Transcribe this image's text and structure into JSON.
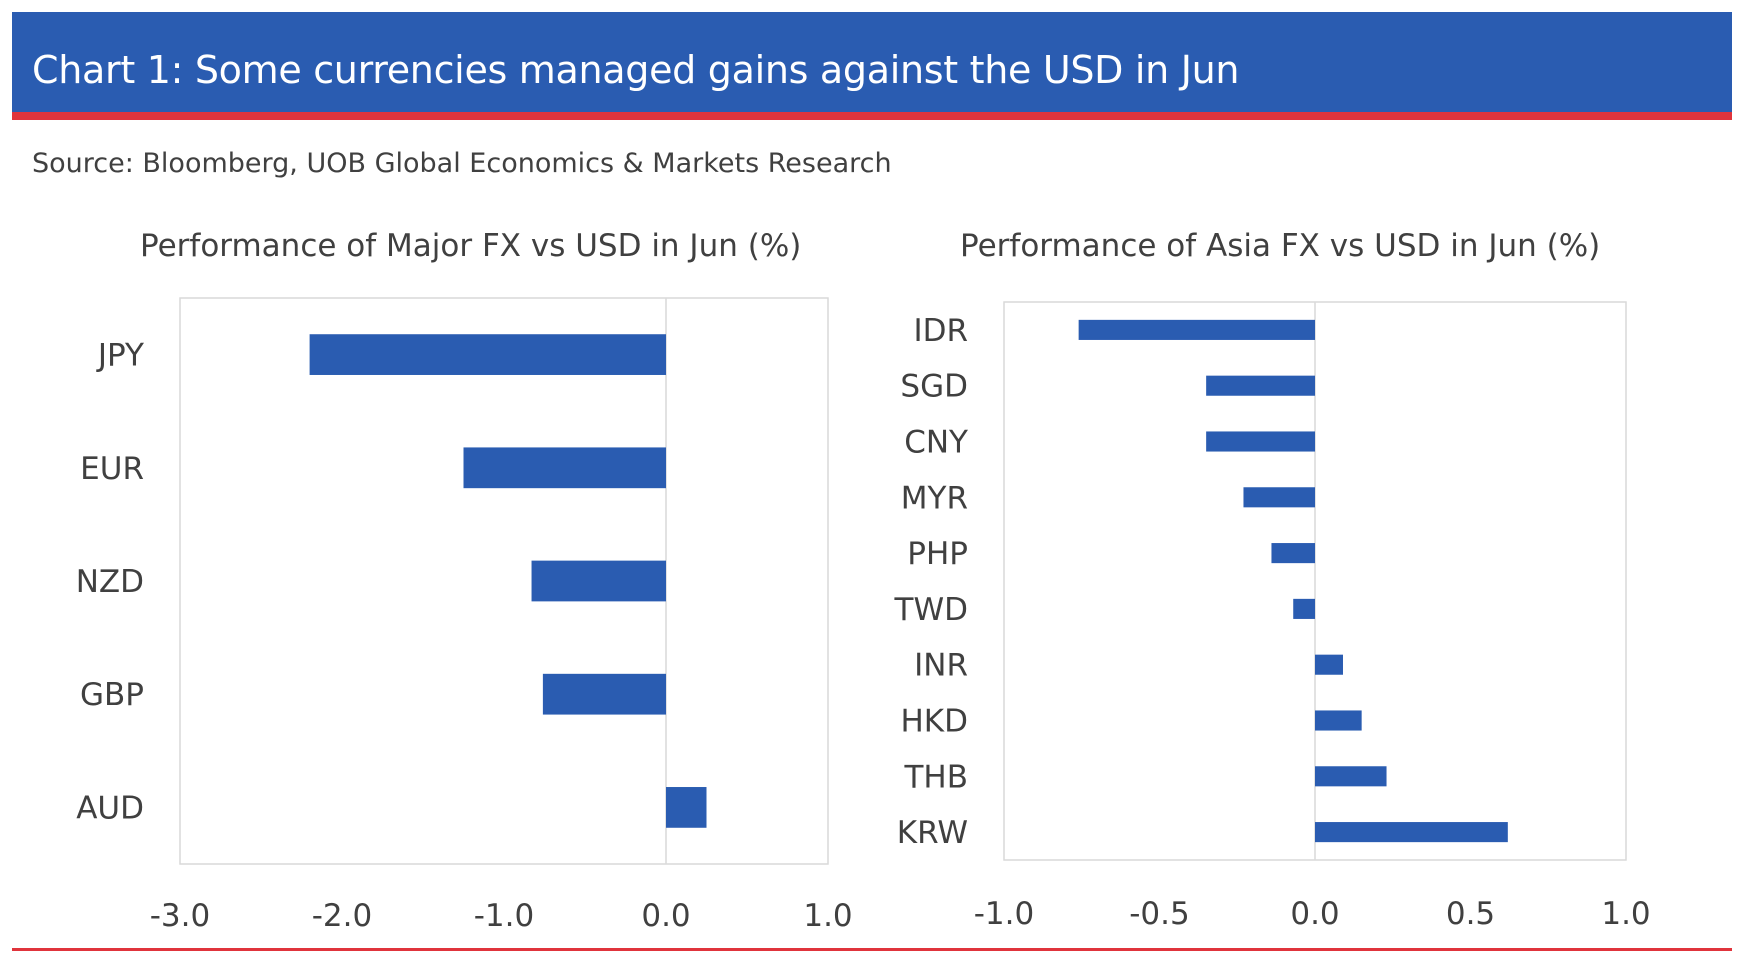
{
  "header": {
    "title": "Chart 1: Some currencies managed gains against the USD in Jun"
  },
  "source": "Source: Bloomberg, UOB Global Economics & Markets Research",
  "colors": {
    "bar": "#2a5cb1",
    "header_bg": "#2a5cb1",
    "accent_rule": "#e0343c",
    "text": "#404040",
    "grid": "#d9d9d9"
  },
  "chart_data": [
    {
      "type": "bar",
      "orientation": "horizontal",
      "title": "Performance of Major FX vs USD in Jun (%)",
      "categories": [
        "JPY",
        "EUR",
        "NZD",
        "GBP",
        "AUD"
      ],
      "values": [
        -2.2,
        -1.25,
        -0.83,
        -0.76,
        0.25
      ],
      "xlim": [
        -3.0,
        1.0
      ],
      "xticks": [
        "-3.0",
        "-2.0",
        "-1.0",
        "0.0",
        "1.0"
      ],
      "grid": false,
      "legend": "none"
    },
    {
      "type": "bar",
      "orientation": "horizontal",
      "title": "Performance of Asia FX vs USD in Jun (%)",
      "categories": [
        "IDR",
        "SGD",
        "CNY",
        "MYR",
        "PHP",
        "TWD",
        "INR",
        "HKD",
        "THB",
        "KRW"
      ],
      "values": [
        -0.76,
        -0.35,
        -0.35,
        -0.23,
        -0.14,
        -0.07,
        0.09,
        0.15,
        0.23,
        0.62
      ],
      "xlim": [
        -1.0,
        1.0
      ],
      "xticks": [
        "-1.0",
        "-0.5",
        "0.0",
        "0.5",
        "1.0"
      ],
      "grid": false,
      "legend": "none"
    }
  ]
}
